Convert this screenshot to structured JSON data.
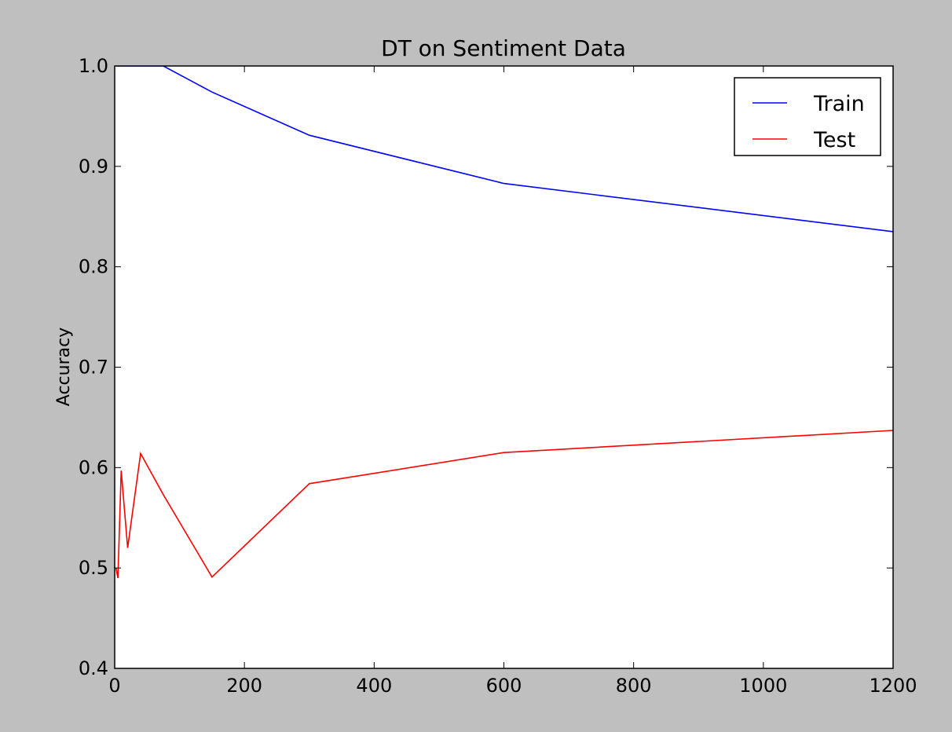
{
  "chart_data": {
    "type": "line",
    "title": "DT on Sentiment Data",
    "xlabel": "",
    "ylabel": "Accuracy",
    "xlim": [
      0,
      1200
    ],
    "ylim": [
      0.4,
      1.0
    ],
    "x_ticks": [
      0,
      200,
      400,
      600,
      800,
      1000,
      1200
    ],
    "x_tick_labels": [
      "0",
      "200",
      "400",
      "600",
      "800",
      "1000",
      "1200"
    ],
    "y_ticks": [
      0.4,
      0.5,
      0.6,
      0.7,
      0.8,
      0.9,
      1.0
    ],
    "y_tick_labels": [
      "0.4",
      "0.5",
      "0.6",
      "0.7",
      "0.8",
      "0.9",
      "1.0"
    ],
    "grid": false,
    "legend_position": "top-right",
    "series": [
      {
        "name": "Train",
        "color": "#0000ff",
        "x": [
          2,
          5,
          10,
          20,
          40,
          75,
          150,
          300,
          600,
          1200
        ],
        "y": [
          1.0,
          1.0,
          1.0,
          1.0,
          1.0,
          1.0,
          0.974,
          0.931,
          0.883,
          0.835
        ]
      },
      {
        "name": "Test",
        "color": "#ff0000",
        "x": [
          2,
          5,
          10,
          20,
          40,
          75,
          150,
          300,
          600,
          1200
        ],
        "y": [
          0.5,
          0.49,
          0.597,
          0.52,
          0.614,
          0.573,
          0.491,
          0.584,
          0.615,
          0.637
        ]
      }
    ]
  }
}
